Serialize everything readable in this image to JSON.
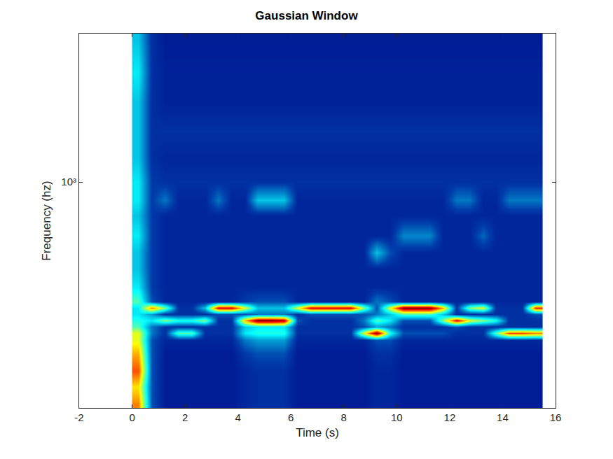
{
  "chart_data": {
    "type": "heatmap",
    "title": "Gaussian Window",
    "x_label": "Time (s)",
    "y_label": "Frequency (hz)",
    "log": "y",
    "grid": false,
    "color": "Jet",
    "xlim": [
      -2,
      16
    ],
    "xticks": [
      -2,
      0,
      2,
      4,
      6,
      8,
      10,
      12,
      14,
      16
    ],
    "ylim": [
      265,
      2393
    ],
    "yticks": [
      {
        "value": 1000,
        "label": "10³"
      }
    ],
    "zlim": [
      0,
      1
    ],
    "x": [
      0.25,
      0.75,
      1.25,
      1.75,
      2.25,
      2.75,
      3.25,
      3.75,
      4.25,
      4.75,
      5.25,
      5.75,
      6.25,
      6.75,
      7.25,
      7.75,
      8.25,
      8.75,
      9.25,
      9.75,
      10.25,
      10.75,
      11.25,
      11.75,
      12.25,
      12.75,
      13.25,
      13.75,
      14.25,
      14.75,
      15.25
    ],
    "y": [
      270,
      300,
      330,
      365,
      395,
      411,
      427,
      443,
      460,
      477,
      495,
      540,
      600,
      660,
      730,
      820,
      900,
      1000,
      1150,
      1350,
      1600,
      1900,
      2300
    ],
    "z": [
      [
        0.75,
        0.15,
        0.06,
        0.06,
        0.06,
        0.06,
        0.06,
        0.06,
        0.08,
        0.1,
        0.1,
        0.1,
        0.06,
        0.06,
        0.06,
        0.06,
        0.06,
        0.06,
        0.08,
        0.08,
        0.06,
        0.06,
        0.06,
        0.06,
        0.06,
        0.06,
        0.06,
        0.06,
        0.06,
        0.06,
        0.06
      ],
      [
        0.65,
        0.15,
        0.06,
        0.06,
        0.06,
        0.06,
        0.06,
        0.06,
        0.08,
        0.1,
        0.1,
        0.1,
        0.06,
        0.06,
        0.06,
        0.06,
        0.06,
        0.06,
        0.08,
        0.08,
        0.06,
        0.06,
        0.06,
        0.06,
        0.06,
        0.06,
        0.06,
        0.06,
        0.06,
        0.06,
        0.06
      ],
      [
        0.8,
        0.15,
        0.06,
        0.06,
        0.06,
        0.06,
        0.06,
        0.06,
        0.08,
        0.1,
        0.1,
        0.1,
        0.06,
        0.06,
        0.06,
        0.06,
        0.06,
        0.06,
        0.08,
        0.08,
        0.06,
        0.06,
        0.06,
        0.06,
        0.06,
        0.06,
        0.06,
        0.06,
        0.06,
        0.06,
        0.06
      ],
      [
        0.7,
        0.15,
        0.06,
        0.06,
        0.06,
        0.06,
        0.06,
        0.06,
        0.12,
        0.15,
        0.15,
        0.15,
        0.06,
        0.06,
        0.06,
        0.06,
        0.06,
        0.06,
        0.1,
        0.1,
        0.06,
        0.06,
        0.06,
        0.06,
        0.06,
        0.06,
        0.06,
        0.06,
        0.06,
        0.06,
        0.06
      ],
      [
        0.6,
        0.15,
        0.08,
        0.08,
        0.08,
        0.08,
        0.08,
        0.08,
        0.2,
        0.25,
        0.25,
        0.25,
        0.08,
        0.08,
        0.08,
        0.08,
        0.08,
        0.08,
        0.15,
        0.15,
        0.08,
        0.08,
        0.08,
        0.08,
        0.08,
        0.08,
        0.08,
        0.08,
        0.08,
        0.08,
        0.08
      ],
      [
        0.6,
        0.2,
        0.1,
        0.45,
        0.45,
        0.1,
        0.1,
        0.1,
        0.35,
        0.4,
        0.4,
        0.4,
        0.1,
        0.1,
        0.1,
        0.1,
        0.1,
        0.6,
        1.0,
        0.4,
        0.15,
        0.15,
        0.15,
        0.15,
        0.1,
        0.1,
        0.1,
        0.45,
        0.8,
        0.8,
        0.75
      ],
      [
        0.45,
        0.2,
        0.1,
        0.1,
        0.1,
        0.1,
        0.1,
        0.1,
        0.3,
        0.35,
        0.35,
        0.35,
        0.1,
        0.1,
        0.1,
        0.1,
        0.1,
        0.15,
        0.25,
        0.2,
        0.1,
        0.1,
        0.1,
        0.1,
        0.15,
        0.1,
        0.1,
        0.1,
        0.1,
        0.1,
        0.1
      ],
      [
        0.4,
        0.35,
        0.5,
        0.4,
        0.4,
        0.5,
        0.1,
        0.1,
        0.7,
        1.0,
        1.0,
        0.95,
        0.15,
        0.1,
        0.1,
        0.1,
        0.1,
        0.2,
        0.45,
        0.35,
        0.15,
        0.15,
        0.15,
        0.5,
        0.9,
        0.6,
        0.5,
        0.4,
        0.1,
        0.1,
        0.1
      ],
      [
        0.35,
        0.25,
        0.1,
        0.1,
        0.1,
        0.1,
        0.15,
        0.15,
        0.15,
        0.2,
        0.2,
        0.2,
        0.1,
        0.15,
        0.15,
        0.15,
        0.15,
        0.15,
        0.2,
        0.3,
        0.45,
        0.45,
        0.45,
        0.3,
        0.1,
        0.1,
        0.1,
        0.1,
        0.1,
        0.1,
        0.15
      ],
      [
        0.35,
        0.75,
        0.5,
        0.1,
        0.1,
        0.3,
        0.9,
        0.9,
        0.6,
        0.3,
        0.3,
        0.3,
        0.6,
        0.9,
        0.9,
        0.9,
        0.9,
        0.5,
        0.15,
        0.6,
        1.0,
        1.0,
        1.0,
        0.7,
        0.1,
        0.5,
        0.6,
        0.1,
        0.1,
        0.1,
        0.85
      ],
      [
        0.45,
        0.15,
        0.08,
        0.08,
        0.08,
        0.08,
        0.08,
        0.08,
        0.12,
        0.15,
        0.15,
        0.15,
        0.08,
        0.08,
        0.08,
        0.08,
        0.08,
        0.08,
        0.2,
        0.15,
        0.08,
        0.08,
        0.08,
        0.08,
        0.08,
        0.08,
        0.08,
        0.08,
        0.08,
        0.08,
        0.08
      ],
      [
        0.35,
        0.12,
        0.08,
        0.08,
        0.08,
        0.08,
        0.08,
        0.08,
        0.08,
        0.08,
        0.08,
        0.08,
        0.08,
        0.08,
        0.08,
        0.08,
        0.08,
        0.08,
        0.08,
        0.08,
        0.08,
        0.08,
        0.08,
        0.08,
        0.08,
        0.08,
        0.08,
        0.08,
        0.08,
        0.08,
        0.08
      ],
      [
        0.3,
        0.12,
        0.08,
        0.08,
        0.08,
        0.08,
        0.08,
        0.08,
        0.08,
        0.08,
        0.08,
        0.08,
        0.08,
        0.08,
        0.08,
        0.08,
        0.08,
        0.08,
        0.08,
        0.08,
        0.08,
        0.08,
        0.08,
        0.08,
        0.08,
        0.08,
        0.08,
        0.08,
        0.08,
        0.08,
        0.08
      ],
      [
        0.3,
        0.12,
        0.08,
        0.08,
        0.08,
        0.08,
        0.08,
        0.08,
        0.08,
        0.08,
        0.08,
        0.08,
        0.08,
        0.08,
        0.08,
        0.08,
        0.08,
        0.08,
        0.3,
        0.15,
        0.08,
        0.08,
        0.08,
        0.08,
        0.08,
        0.08,
        0.08,
        0.08,
        0.08,
        0.08,
        0.08
      ],
      [
        0.35,
        0.12,
        0.08,
        0.08,
        0.08,
        0.08,
        0.08,
        0.08,
        0.08,
        0.08,
        0.08,
        0.08,
        0.08,
        0.08,
        0.08,
        0.08,
        0.08,
        0.08,
        0.08,
        0.08,
        0.22,
        0.22,
        0.22,
        0.08,
        0.08,
        0.08,
        0.18,
        0.08,
        0.08,
        0.08,
        0.08
      ],
      [
        0.3,
        0.12,
        0.08,
        0.08,
        0.08,
        0.08,
        0.08,
        0.08,
        0.08,
        0.08,
        0.08,
        0.08,
        0.08,
        0.08,
        0.08,
        0.08,
        0.08,
        0.08,
        0.08,
        0.08,
        0.08,
        0.08,
        0.08,
        0.08,
        0.08,
        0.08,
        0.08,
        0.08,
        0.08,
        0.08,
        0.08
      ],
      [
        0.35,
        0.12,
        0.2,
        0.08,
        0.08,
        0.08,
        0.2,
        0.08,
        0.08,
        0.3,
        0.3,
        0.3,
        0.08,
        0.08,
        0.08,
        0.08,
        0.08,
        0.08,
        0.08,
        0.08,
        0.08,
        0.08,
        0.08,
        0.08,
        0.2,
        0.2,
        0.08,
        0.08,
        0.2,
        0.2,
        0.2
      ],
      [
        0.35,
        0.12,
        0.1,
        0.1,
        0.1,
        0.1,
        0.1,
        0.1,
        0.1,
        0.1,
        0.1,
        0.1,
        0.1,
        0.1,
        0.1,
        0.1,
        0.1,
        0.1,
        0.1,
        0.1,
        0.1,
        0.1,
        0.1,
        0.1,
        0.1,
        0.1,
        0.1,
        0.1,
        0.1,
        0.1,
        0.1
      ],
      [
        0.3,
        0.1,
        0.08,
        0.08,
        0.08,
        0.08,
        0.08,
        0.08,
        0.08,
        0.08,
        0.08,
        0.08,
        0.08,
        0.08,
        0.08,
        0.08,
        0.08,
        0.08,
        0.08,
        0.08,
        0.08,
        0.08,
        0.08,
        0.08,
        0.08,
        0.08,
        0.08,
        0.08,
        0.08,
        0.08,
        0.08
      ],
      [
        0.3,
        0.1,
        0.1,
        0.1,
        0.1,
        0.1,
        0.1,
        0.1,
        0.1,
        0.1,
        0.1,
        0.1,
        0.1,
        0.1,
        0.1,
        0.1,
        0.1,
        0.1,
        0.1,
        0.1,
        0.1,
        0.1,
        0.1,
        0.1,
        0.1,
        0.1,
        0.1,
        0.1,
        0.1,
        0.1,
        0.1
      ],
      [
        0.3,
        0.1,
        0.07,
        0.07,
        0.07,
        0.07,
        0.07,
        0.07,
        0.07,
        0.07,
        0.07,
        0.07,
        0.07,
        0.07,
        0.07,
        0.07,
        0.07,
        0.07,
        0.07,
        0.07,
        0.07,
        0.07,
        0.07,
        0.07,
        0.07,
        0.07,
        0.07,
        0.07,
        0.07,
        0.07,
        0.07
      ],
      [
        0.35,
        0.1,
        0.07,
        0.07,
        0.07,
        0.07,
        0.07,
        0.07,
        0.07,
        0.07,
        0.07,
        0.07,
        0.07,
        0.07,
        0.07,
        0.07,
        0.07,
        0.07,
        0.07,
        0.07,
        0.07,
        0.07,
        0.07,
        0.07,
        0.07,
        0.07,
        0.07,
        0.07,
        0.07,
        0.07,
        0.07
      ],
      [
        0.3,
        0.1,
        0.06,
        0.06,
        0.06,
        0.06,
        0.06,
        0.06,
        0.06,
        0.06,
        0.06,
        0.06,
        0.06,
        0.06,
        0.06,
        0.06,
        0.06,
        0.06,
        0.06,
        0.06,
        0.06,
        0.06,
        0.06,
        0.06,
        0.06,
        0.06,
        0.06,
        0.06,
        0.06,
        0.06,
        0.06
      ]
    ]
  }
}
